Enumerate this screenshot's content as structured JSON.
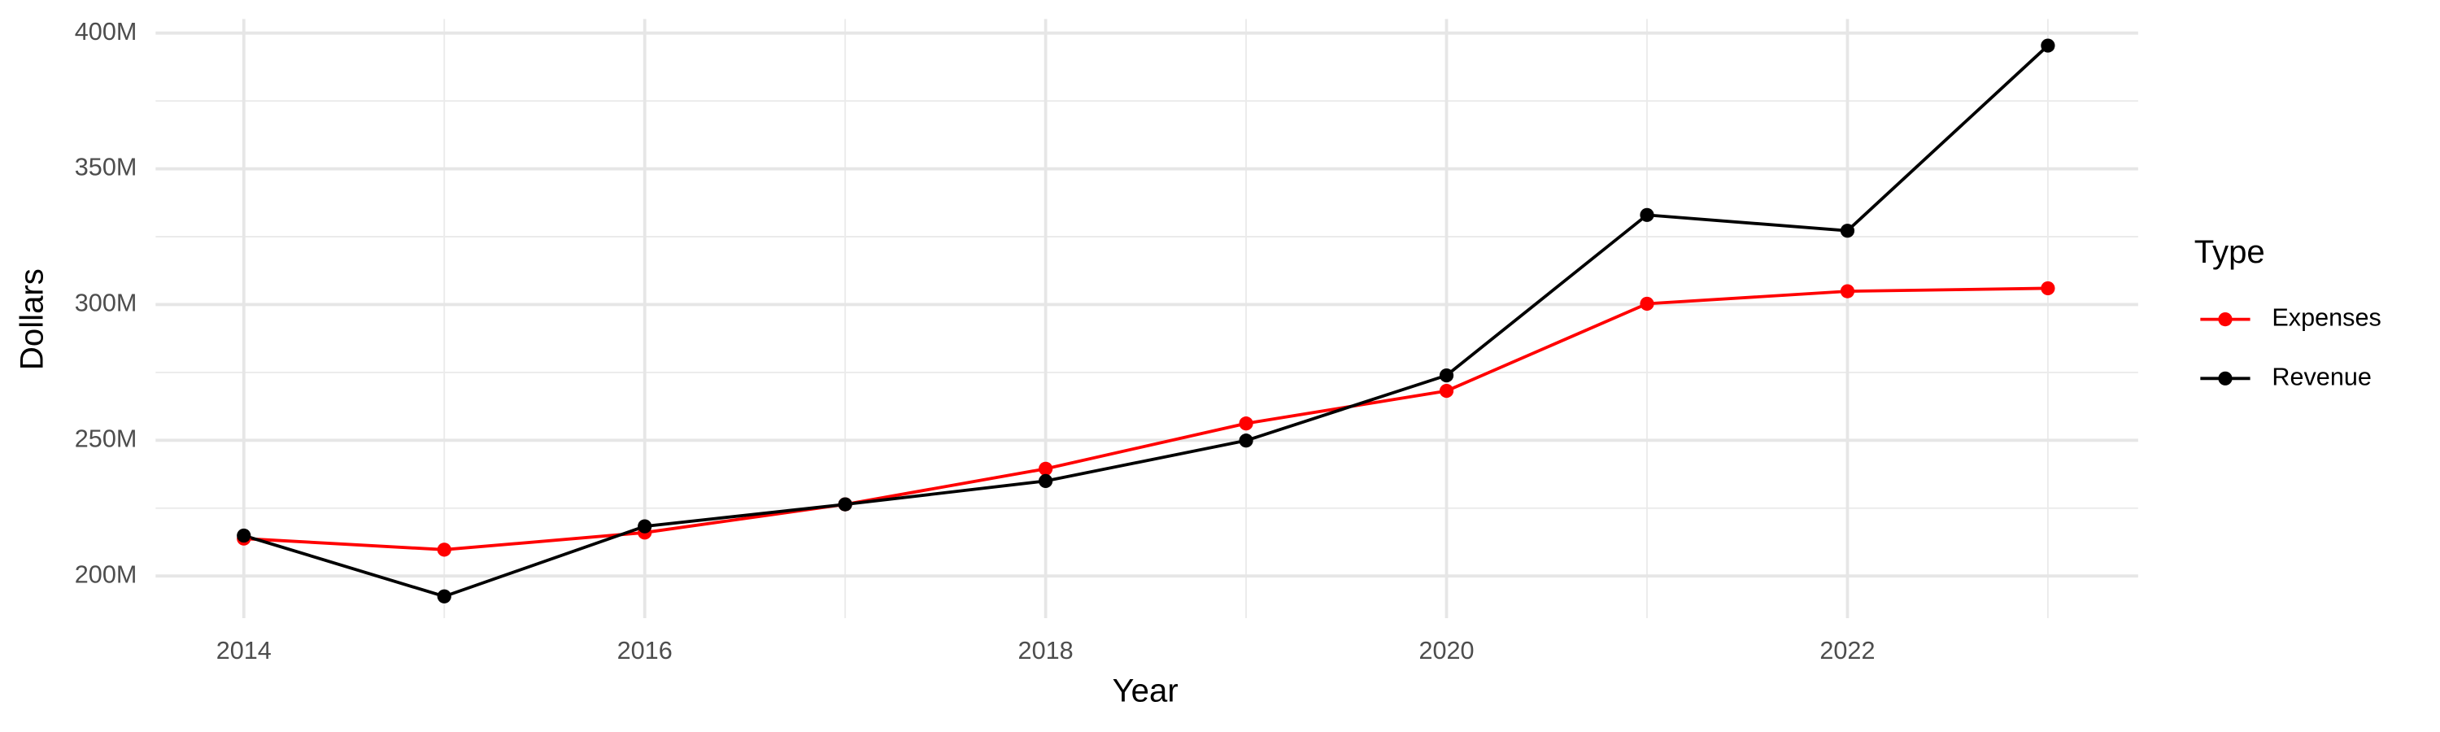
{
  "chart_data": {
    "type": "line",
    "x_label": "Year",
    "y_label": "Dollars",
    "legend_title": "Type",
    "x": [
      2014,
      2015,
      2016,
      2017,
      2018,
      2019,
      2020,
      2021,
      2022,
      2023
    ],
    "series": [
      {
        "name": "Expenses",
        "color": "#ff0000",
        "values": [
          213800000,
          209700000,
          216000000,
          226400000,
          239500000,
          256200000,
          268200000,
          300300000,
          304900000,
          306000000
        ]
      },
      {
        "name": "Revenue",
        "color": "#000000",
        "values": [
          214900000,
          192500000,
          218300000,
          226400000,
          235000000,
          249900000,
          273900000,
          333000000,
          327200000,
          395400000
        ]
      }
    ],
    "xlim": [
      2013.56,
      2023.45
    ],
    "xticks": [
      2014,
      2016,
      2018,
      2020,
      2022
    ],
    "ylim": [
      184500000,
      405200000
    ],
    "yticks": [
      {
        "value": 200000000,
        "label": "200M"
      },
      {
        "value": 250000000,
        "label": "250M"
      },
      {
        "value": 300000000,
        "label": "300M"
      },
      {
        "value": 350000000,
        "label": "350M"
      },
      {
        "value": 400000000,
        "label": "400M"
      }
    ],
    "grid": true,
    "legend_position": "right"
  }
}
